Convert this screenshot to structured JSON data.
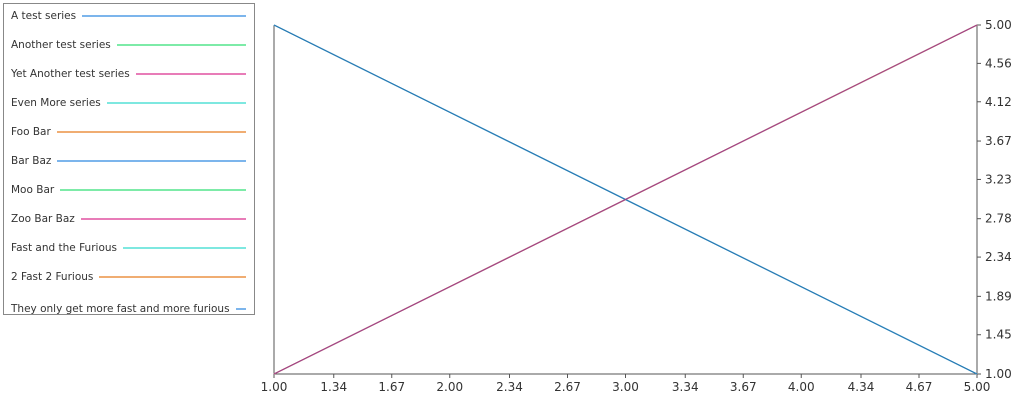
{
  "chart_data": {
    "type": "line",
    "title": "",
    "xlabel": "",
    "ylabel": "",
    "xlim": [
      1,
      5
    ],
    "ylim": [
      1,
      5
    ],
    "x_ticks": [
      "1.00",
      "1.34",
      "1.67",
      "2.00",
      "2.34",
      "2.67",
      "3.00",
      "3.34",
      "3.67",
      "4.00",
      "4.34",
      "4.67",
      "5.00"
    ],
    "y_ticks": [
      "1.00",
      "1.45",
      "1.89",
      "2.34",
      "2.78",
      "3.23",
      "3.67",
      "4.12",
      "4.56",
      "5.00"
    ],
    "y_axis_side": "right",
    "legend_position": "left",
    "grid": false,
    "series": [
      {
        "name": "A test series",
        "color": "#7cb5ec",
        "x": [
          1,
          5
        ],
        "y": [
          5,
          1
        ]
      },
      {
        "name": "Another test series",
        "color": "#7deba8",
        "x": [
          1,
          5
        ],
        "y": [
          1,
          5
        ]
      },
      {
        "name": "Yet Another test series",
        "color": "#e87cb8",
        "x": [
          1,
          5
        ],
        "y": [
          1,
          5
        ]
      },
      {
        "name": "Even More series",
        "color": "#7ee8e0",
        "x": [
          1,
          5
        ],
        "y": [
          5,
          1
        ]
      },
      {
        "name": "Foo Bar",
        "color": "#f0ad72",
        "x": [
          1,
          5
        ],
        "y": [
          1,
          5
        ]
      },
      {
        "name": "Bar Baz",
        "color": "#7cb5ec",
        "x": [
          1,
          5
        ],
        "y": [
          5,
          1
        ]
      },
      {
        "name": "Moo Bar",
        "color": "#7deba8",
        "x": [
          1,
          5
        ],
        "y": [
          1,
          5
        ]
      },
      {
        "name": "Zoo Bar Baz",
        "color": "#e87cb8",
        "x": [
          1,
          5
        ],
        "y": [
          1,
          5
        ]
      },
      {
        "name": "Fast and the Furious",
        "color": "#7ee8e0",
        "x": [
          1,
          5
        ],
        "y": [
          5,
          1
        ]
      },
      {
        "name": "2 Fast 2 Furious",
        "color": "#f0ad72",
        "x": [
          1,
          5
        ],
        "y": [
          1,
          5
        ]
      },
      {
        "name": "They only get more fast and more furious",
        "color": "#7cb5ec",
        "x": [
          1,
          5
        ],
        "y": [
          5,
          1
        ]
      }
    ]
  }
}
